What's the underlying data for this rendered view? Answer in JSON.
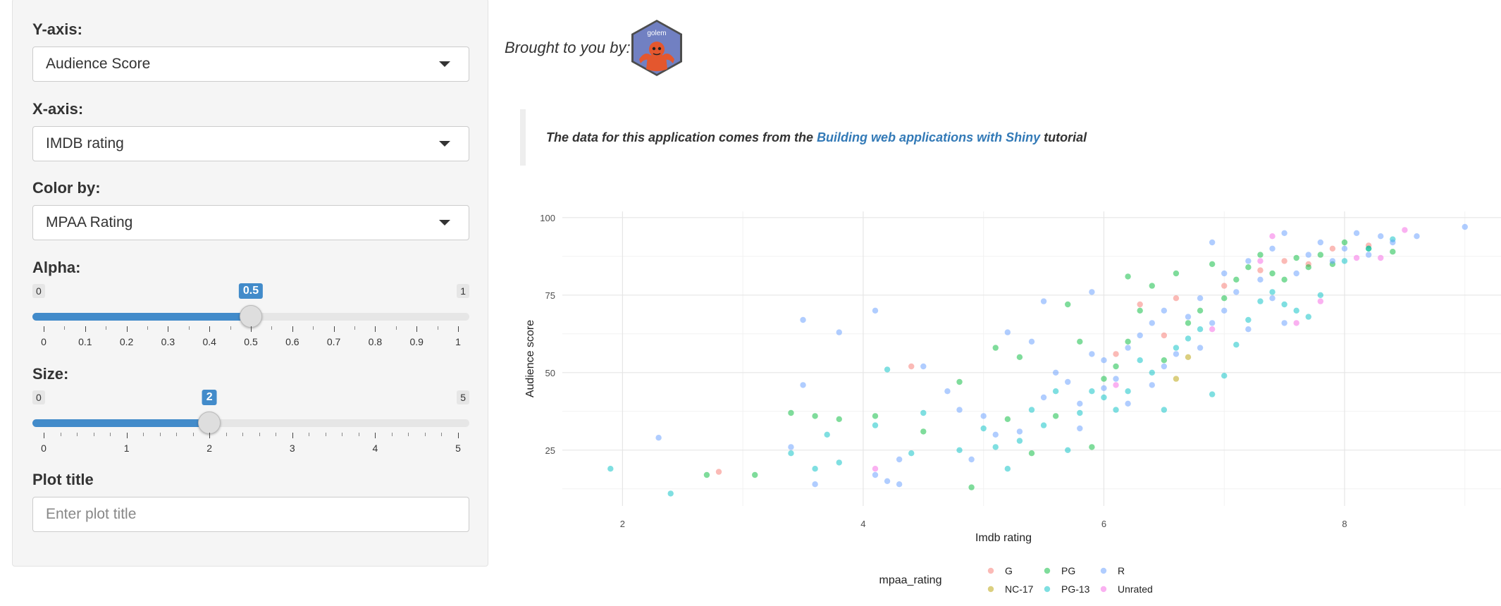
{
  "sidebar": {
    "y_axis": {
      "label": "Y-axis:",
      "value": "Audience Score"
    },
    "x_axis": {
      "label": "X-axis:",
      "value": "IMDB rating"
    },
    "color_by": {
      "label": "Color by:",
      "value": "MPAA Rating"
    },
    "alpha": {
      "label": "Alpha:",
      "min": "0",
      "max": "1",
      "value": "0.5",
      "fraction": 0.5,
      "tick_labels": [
        "0",
        "0.1",
        "0.2",
        "0.3",
        "0.4",
        "0.5",
        "0.6",
        "0.7",
        "0.8",
        "0.9",
        "1"
      ],
      "minor_per_major": 1
    },
    "size": {
      "label": "Size:",
      "min": "0",
      "max": "5",
      "value": "2",
      "fraction": 0.4,
      "tick_labels": [
        "0",
        "1",
        "2",
        "3",
        "4",
        "5"
      ],
      "minor_per_major": 4
    },
    "plot_title": {
      "label": "Plot title",
      "placeholder": "Enter plot title"
    }
  },
  "main": {
    "brought_by": "Brought to you by:",
    "logo_text": "golem",
    "note": {
      "prefix": "The data for this application comes from the ",
      "link_text": "Building web applications with Shiny",
      "suffix": " tutorial"
    }
  },
  "colors": {
    "accent": "#428bca",
    "G": "#F8766D",
    "NC-17": "#B79F00",
    "PG": "#00BA38",
    "PG-13": "#00BFC4",
    "R": "#619CFF",
    "Unrated": "#F564E3"
  },
  "chart_data": {
    "type": "scatter",
    "title": "",
    "xlabel": "Imdb rating",
    "ylabel": "Audience score",
    "xlim": [
      1.5,
      9.3
    ],
    "ylim": [
      7,
      102
    ],
    "x_ticks": [
      "2",
      "4",
      "6",
      "8"
    ],
    "y_ticks": [
      "25",
      "50",
      "75",
      "100"
    ],
    "grid": true,
    "legend": {
      "title": "mpaa_rating",
      "position": "bottom",
      "entries": [
        "G",
        "NC-17",
        "PG",
        "PG-13",
        "R",
        "Unrated"
      ]
    },
    "series": [
      {
        "name": "G",
        "points": [
          [
            2.8,
            18
          ],
          [
            4.4,
            52
          ],
          [
            6.1,
            56
          ],
          [
            6.3,
            72
          ],
          [
            6.5,
            62
          ],
          [
            6.6,
            74
          ],
          [
            7.0,
            78
          ],
          [
            7.3,
            83
          ],
          [
            7.5,
            86
          ],
          [
            7.7,
            85
          ],
          [
            7.9,
            90
          ],
          [
            8.2,
            91
          ]
        ]
      },
      {
        "name": "NC-17",
        "points": [
          [
            6.6,
            48
          ],
          [
            6.7,
            55
          ]
        ]
      },
      {
        "name": "PG",
        "points": [
          [
            2.7,
            17
          ],
          [
            3.1,
            17
          ],
          [
            3.4,
            37
          ],
          [
            3.6,
            36
          ],
          [
            3.8,
            35
          ],
          [
            4.1,
            36
          ],
          [
            4.5,
            31
          ],
          [
            4.8,
            47
          ],
          [
            4.9,
            13
          ],
          [
            5.1,
            58
          ],
          [
            5.2,
            35
          ],
          [
            5.3,
            55
          ],
          [
            5.4,
            24
          ],
          [
            5.6,
            36
          ],
          [
            5.7,
            72
          ],
          [
            5.8,
            60
          ],
          [
            5.9,
            26
          ],
          [
            6.0,
            48
          ],
          [
            6.1,
            52
          ],
          [
            6.2,
            60
          ],
          [
            6.2,
            81
          ],
          [
            6.3,
            70
          ],
          [
            6.4,
            78
          ],
          [
            6.5,
            54
          ],
          [
            6.6,
            82
          ],
          [
            6.7,
            66
          ],
          [
            6.8,
            70
          ],
          [
            6.9,
            85
          ],
          [
            7.0,
            74
          ],
          [
            7.1,
            80
          ],
          [
            7.2,
            84
          ],
          [
            7.3,
            88
          ],
          [
            7.4,
            82
          ],
          [
            7.5,
            80
          ],
          [
            7.6,
            87
          ],
          [
            7.7,
            84
          ],
          [
            7.8,
            88
          ],
          [
            7.9,
            85
          ],
          [
            8.0,
            92
          ],
          [
            8.2,
            90
          ],
          [
            8.4,
            89
          ]
        ]
      },
      {
        "name": "PG-13",
        "points": [
          [
            1.9,
            19
          ],
          [
            2.4,
            11
          ],
          [
            3.4,
            24
          ],
          [
            3.6,
            19
          ],
          [
            3.7,
            30
          ],
          [
            3.8,
            21
          ],
          [
            4.1,
            33
          ],
          [
            4.2,
            51
          ],
          [
            4.4,
            24
          ],
          [
            4.5,
            37
          ],
          [
            4.8,
            25
          ],
          [
            5.0,
            32
          ],
          [
            5.1,
            26
          ],
          [
            5.2,
            19
          ],
          [
            5.3,
            28
          ],
          [
            5.4,
            38
          ],
          [
            5.5,
            33
          ],
          [
            5.6,
            44
          ],
          [
            5.7,
            25
          ],
          [
            5.8,
            37
          ],
          [
            5.9,
            44
          ],
          [
            6.0,
            42
          ],
          [
            6.1,
            38
          ],
          [
            6.2,
            44
          ],
          [
            6.3,
            54
          ],
          [
            6.4,
            50
          ],
          [
            6.5,
            38
          ],
          [
            6.6,
            58
          ],
          [
            6.7,
            61
          ],
          [
            6.8,
            64
          ],
          [
            6.9,
            43
          ],
          [
            7.0,
            49
          ],
          [
            7.1,
            59
          ],
          [
            7.2,
            67
          ],
          [
            7.3,
            73
          ],
          [
            7.4,
            76
          ],
          [
            7.5,
            72
          ],
          [
            7.6,
            70
          ],
          [
            7.7,
            68
          ],
          [
            7.8,
            75
          ],
          [
            8.0,
            86
          ],
          [
            8.2,
            90
          ],
          [
            8.4,
            93
          ]
        ]
      },
      {
        "name": "R",
        "points": [
          [
            2.3,
            29
          ],
          [
            3.4,
            26
          ],
          [
            3.5,
            67
          ],
          [
            3.5,
            46
          ],
          [
            3.6,
            14
          ],
          [
            3.8,
            63
          ],
          [
            4.1,
            17
          ],
          [
            4.1,
            70
          ],
          [
            4.2,
            15
          ],
          [
            4.3,
            14
          ],
          [
            4.3,
            22
          ],
          [
            4.5,
            52
          ],
          [
            4.7,
            44
          ],
          [
            4.8,
            38
          ],
          [
            4.9,
            22
          ],
          [
            5.0,
            36
          ],
          [
            5.1,
            30
          ],
          [
            5.2,
            63
          ],
          [
            5.3,
            31
          ],
          [
            5.4,
            60
          ],
          [
            5.5,
            73
          ],
          [
            5.5,
            42
          ],
          [
            5.6,
            50
          ],
          [
            5.7,
            47
          ],
          [
            5.8,
            40
          ],
          [
            5.8,
            32
          ],
          [
            5.9,
            76
          ],
          [
            5.9,
            56
          ],
          [
            6.0,
            54
          ],
          [
            6.0,
            45
          ],
          [
            6.1,
            48
          ],
          [
            6.2,
            40
          ],
          [
            6.2,
            58
          ],
          [
            6.3,
            62
          ],
          [
            6.4,
            46
          ],
          [
            6.4,
            66
          ],
          [
            6.5,
            52
          ],
          [
            6.5,
            70
          ],
          [
            6.6,
            56
          ],
          [
            6.7,
            68
          ],
          [
            6.8,
            58
          ],
          [
            6.8,
            74
          ],
          [
            6.9,
            92
          ],
          [
            6.9,
            66
          ],
          [
            7.0,
            70
          ],
          [
            7.0,
            82
          ],
          [
            7.1,
            76
          ],
          [
            7.2,
            64
          ],
          [
            7.2,
            86
          ],
          [
            7.3,
            80
          ],
          [
            7.4,
            90
          ],
          [
            7.4,
            74
          ],
          [
            7.5,
            95
          ],
          [
            7.5,
            66
          ],
          [
            7.6,
            82
          ],
          [
            7.7,
            88
          ],
          [
            7.8,
            92
          ],
          [
            7.9,
            86
          ],
          [
            8.0,
            90
          ],
          [
            8.1,
            95
          ],
          [
            8.2,
            88
          ],
          [
            8.3,
            94
          ],
          [
            8.4,
            92
          ],
          [
            8.6,
            94
          ],
          [
            9.0,
            97
          ]
        ]
      },
      {
        "name": "Unrated",
        "points": [
          [
            4.1,
            19
          ],
          [
            6.1,
            46
          ],
          [
            6.9,
            64
          ],
          [
            7.3,
            86
          ],
          [
            7.4,
            94
          ],
          [
            7.6,
            66
          ],
          [
            7.8,
            73
          ],
          [
            8.1,
            87
          ],
          [
            8.3,
            87
          ],
          [
            8.5,
            96
          ]
        ]
      }
    ]
  }
}
